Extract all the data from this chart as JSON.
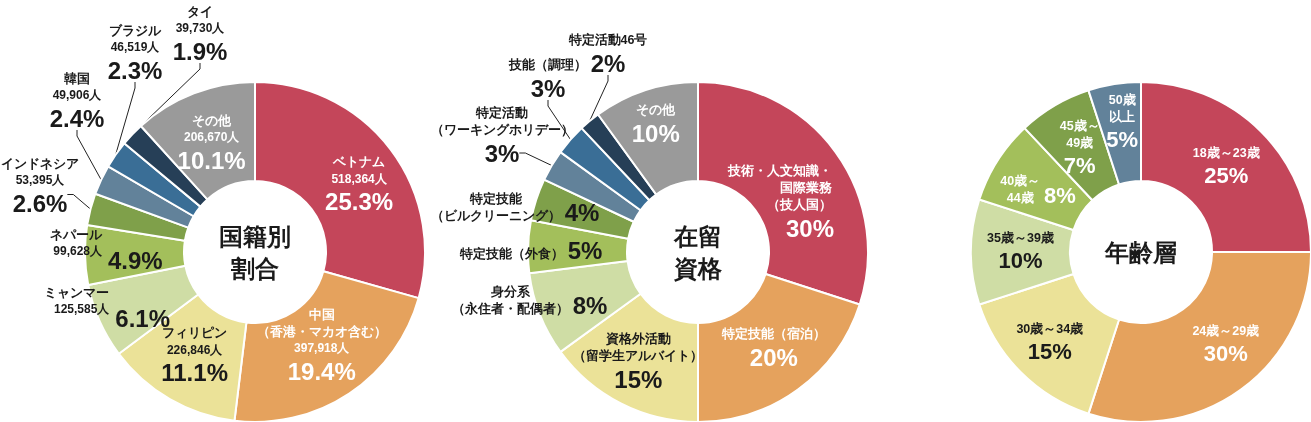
{
  "chart_data": [
    {
      "type": "donut",
      "title": "国籍別割合",
      "categories": [
        "ベトナム",
        "中国（香港・マカオ含む）",
        "フィリピン",
        "ミャンマー",
        "ネパール",
        "インドネシア",
        "韓国",
        "ブラジル",
        "タイ",
        "その他"
      ],
      "values": [
        518364,
        397918,
        226846,
        125585,
        99628,
        53395,
        49906,
        46519,
        39730,
        206670
      ],
      "colors": [
        "#c4465a",
        "#e5a25d",
        "#ebe298",
        "#cfdda5",
        "#a3bf5b",
        "#7fa04a",
        "#62829a",
        "#3a6e96",
        "#263f57",
        "#9a9a9a"
      ],
      "value_labels": [
        "518,364人\n25.3%",
        "397,918人\n19.4%",
        "226,846人\n11.1%",
        "125,585人\n6.1%",
        "99,628人\n4.9%",
        "53,395人\n2.6%",
        "49,906人\n2.4%",
        "46,519人\n2.3%",
        "39,730人\n1.9%",
        "206,670人\n10.1%"
      ]
    },
    {
      "type": "donut",
      "title": "在留資格",
      "categories": [
        "技術・人文知識・国際業務（技人国）",
        "特定技能（宿泊）",
        "資格外活動（留学生アルバイト）",
        "身分系（永住者・配偶者）",
        "特定技能（外食）",
        "特定技能（ビルクリーニング）",
        "特定活動（ワーキングホリデー）",
        "技能（調理）",
        "特定活動46号",
        "その他"
      ],
      "values": [
        30,
        20,
        15,
        8,
        5,
        4,
        3,
        3,
        2,
        10
      ],
      "colors": [
        "#c4465a",
        "#e5a25d",
        "#ebe298",
        "#cfdda5",
        "#a3bf5b",
        "#7fa04a",
        "#62829a",
        "#3a6e96",
        "#263f57",
        "#9a9a9a"
      ],
      "value_labels": [
        "30%",
        "20%",
        "15%",
        "8%",
        "5%",
        "4%",
        "3%",
        "3%",
        "2%",
        "10%"
      ]
    },
    {
      "type": "donut",
      "title": "年齢層",
      "categories": [
        "18歳～23歳",
        "24歳～29歳",
        "30歳～34歳",
        "35歳～39歳",
        "40歳～44歳",
        "45歳～49歳",
        "50歳以上"
      ],
      "values": [
        25,
        30,
        15,
        10,
        8,
        7,
        5
      ],
      "colors": [
        "#c4465a",
        "#e5a25d",
        "#ebe298",
        "#cfdda5",
        "#a3bf5b",
        "#7fa04a",
        "#62829a"
      ],
      "value_labels": [
        "25%",
        "30%",
        "15%",
        "10%",
        "8%",
        "7%",
        "5%"
      ]
    }
  ]
}
